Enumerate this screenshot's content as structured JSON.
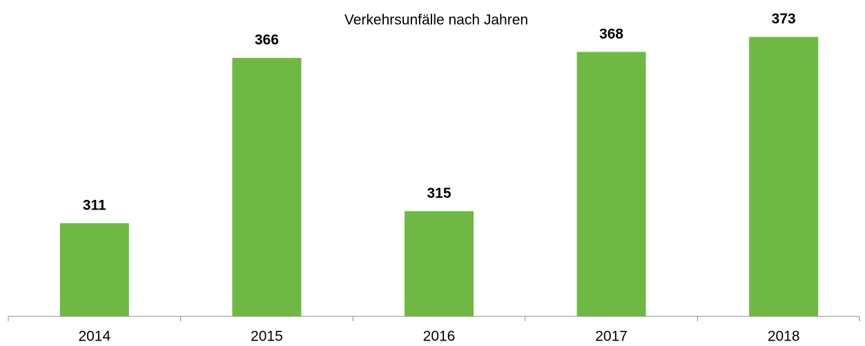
{
  "chart_data": {
    "type": "bar",
    "title": "Verkehrsunfälle nach Jahren",
    "categories": [
      "2014",
      "2015",
      "2016",
      "2017",
      "2018"
    ],
    "values": [
      311,
      366,
      315,
      368,
      373
    ],
    "color": "#70b844",
    "ylim": [
      280,
      380
    ]
  }
}
